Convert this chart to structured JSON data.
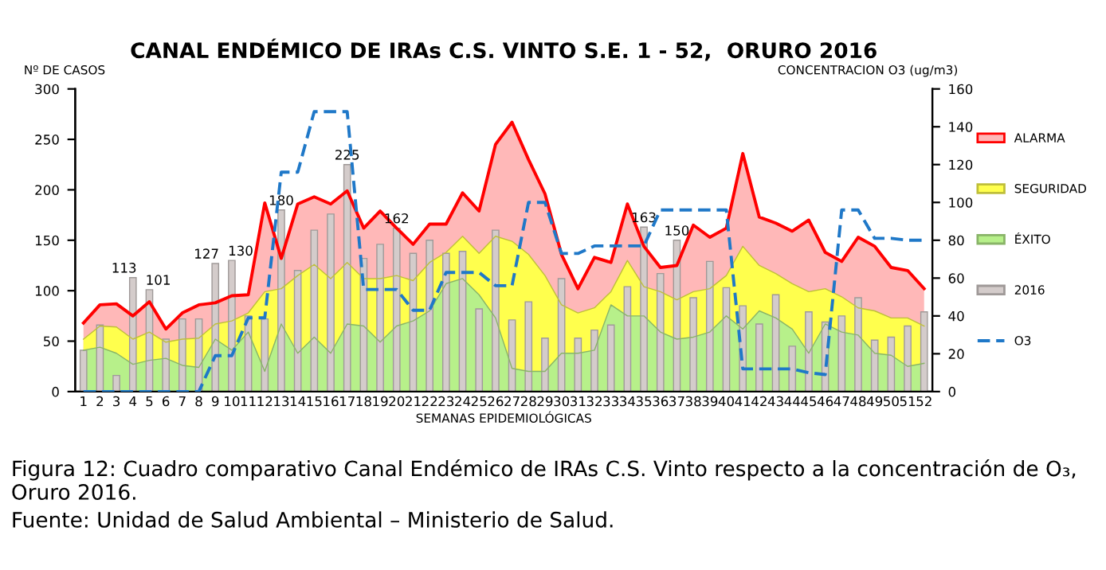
{
  "chart_data": {
    "type": "bar",
    "title": "CANAL ENDÉMICO DE IRAs C.S. VINTO S.E. 1 - 52,  ORURO 2016",
    "xlabel": "SEMANAS EPIDEMIOLÓGICAS",
    "ylabel": "Nº DE CASOS",
    "y2label": "CONCENTRACION O3 (ug/m3)",
    "categories": [
      "1",
      "2",
      "3",
      "4",
      "5",
      "6",
      "7",
      "8",
      "9",
      "10",
      "11",
      "12",
      "13",
      "14",
      "15",
      "16",
      "17",
      "18",
      "19",
      "20",
      "21",
      "22",
      "23",
      "24",
      "25",
      "26",
      "27",
      "28",
      "29",
      "30",
      "31",
      "32",
      "33",
      "34",
      "35",
      "36",
      "37",
      "38",
      "39",
      "40",
      "41",
      "42",
      "43",
      "44",
      "45",
      "46",
      "47",
      "48",
      "49",
      "50",
      "51",
      "52"
    ],
    "series": [
      {
        "name": "ALARMA",
        "type": "area",
        "color": "#ff0000",
        "values": [
          68,
          86,
          87,
          75,
          89,
          62,
          78,
          86,
          88,
          95,
          96,
          187,
          132,
          186,
          193,
          186,
          199,
          162,
          179,
          162,
          146,
          166,
          166,
          197,
          179,
          245,
          267,
          230,
          196,
          136,
          102,
          133,
          128,
          186,
          144,
          123,
          125,
          165,
          153,
          162,
          236,
          173,
          167,
          159,
          170,
          138,
          129,
          153,
          144,
          123,
          120,
          102
        ]
      },
      {
        "name": "SEGURIDAD",
        "type": "area",
        "color": "#ffff4d",
        "values": [
          52,
          65,
          64,
          52,
          59,
          49,
          52,
          53,
          67,
          70,
          78,
          99,
          102,
          115,
          126,
          112,
          128,
          112,
          112,
          115,
          110,
          128,
          138,
          154,
          137,
          154,
          149,
          136,
          115,
          86,
          78,
          83,
          99,
          130,
          104,
          99,
          91,
          99,
          102,
          115,
          144,
          125,
          117,
          107,
          99,
          102,
          94,
          83,
          80,
          73,
          73,
          65
        ]
      },
      {
        "name": "ÉXITO",
        "type": "area",
        "color": "#b7f08a",
        "values": [
          41,
          44,
          38,
          27,
          31,
          33,
          26,
          24,
          52,
          41,
          59,
          20,
          67,
          38,
          54,
          38,
          67,
          65,
          49,
          65,
          70,
          80,
          107,
          112,
          96,
          73,
          23,
          20,
          20,
          38,
          38,
          41,
          86,
          75,
          75,
          59,
          52,
          54,
          59,
          75,
          62,
          80,
          73,
          62,
          38,
          67,
          59,
          56,
          38,
          36,
          25,
          28
        ]
      },
      {
        "name": "2016",
        "color": "#d4cccb",
        "values": [
          41,
          66,
          16,
          113,
          101,
          52,
          72,
          72,
          127,
          130,
          75,
          72,
          180,
          120,
          160,
          176,
          225,
          132,
          146,
          162,
          137,
          150,
          137,
          139,
          82,
          160,
          71,
          89,
          53,
          112,
          53,
          61,
          66,
          104,
          163,
          117,
          150,
          93,
          129,
          103,
          85,
          67,
          96,
          45,
          79,
          69,
          75,
          93,
          51,
          54,
          65,
          79
        ],
        "value_labels": [
          null,
          null,
          null,
          "113",
          "101",
          null,
          null,
          null,
          "127",
          "130",
          null,
          null,
          "180",
          null,
          null,
          null,
          "225",
          null,
          null,
          "162",
          null,
          null,
          null,
          null,
          null,
          null,
          null,
          null,
          null,
          null,
          null,
          null,
          null,
          null,
          "163",
          null,
          "150",
          null,
          null,
          null,
          null,
          null,
          null,
          null,
          null,
          null,
          null,
          null,
          null,
          null,
          null,
          null
        ]
      },
      {
        "name": "O3",
        "type": "line",
        "axis": "y2",
        "color": "#1f78c8",
        "line_style": "dashed",
        "values": [
          0,
          0,
          0,
          0,
          0,
          0,
          0,
          0,
          19,
          19,
          39,
          39,
          116,
          116,
          148,
          148,
          148,
          54,
          54,
          54,
          43,
          43,
          63,
          63,
          63,
          56,
          56,
          100,
          100,
          73,
          73,
          77,
          77,
          77,
          77,
          96,
          96,
          96,
          96,
          96,
          12,
          12,
          12,
          12,
          10,
          9,
          96,
          96,
          81,
          81,
          80,
          80
        ]
      }
    ],
    "ylim": [
      0,
      300
    ],
    "yticks": [
      0,
      50,
      100,
      150,
      200,
      250,
      300
    ],
    "y2lim": [
      0,
      160
    ],
    "y2ticks": [
      0,
      20,
      40,
      60,
      80,
      100,
      120,
      140,
      160
    ],
    "grid": false,
    "legend": "right",
    "annotations": [
      "Figura 12: Cuadro comparativo Canal Endémico de IRAs C.S. Vinto respecto a la concentración de O₃, Oruro 2016.",
      "Fuente: Unidad de Salud Ambiental – Ministerio de Salud."
    ]
  }
}
